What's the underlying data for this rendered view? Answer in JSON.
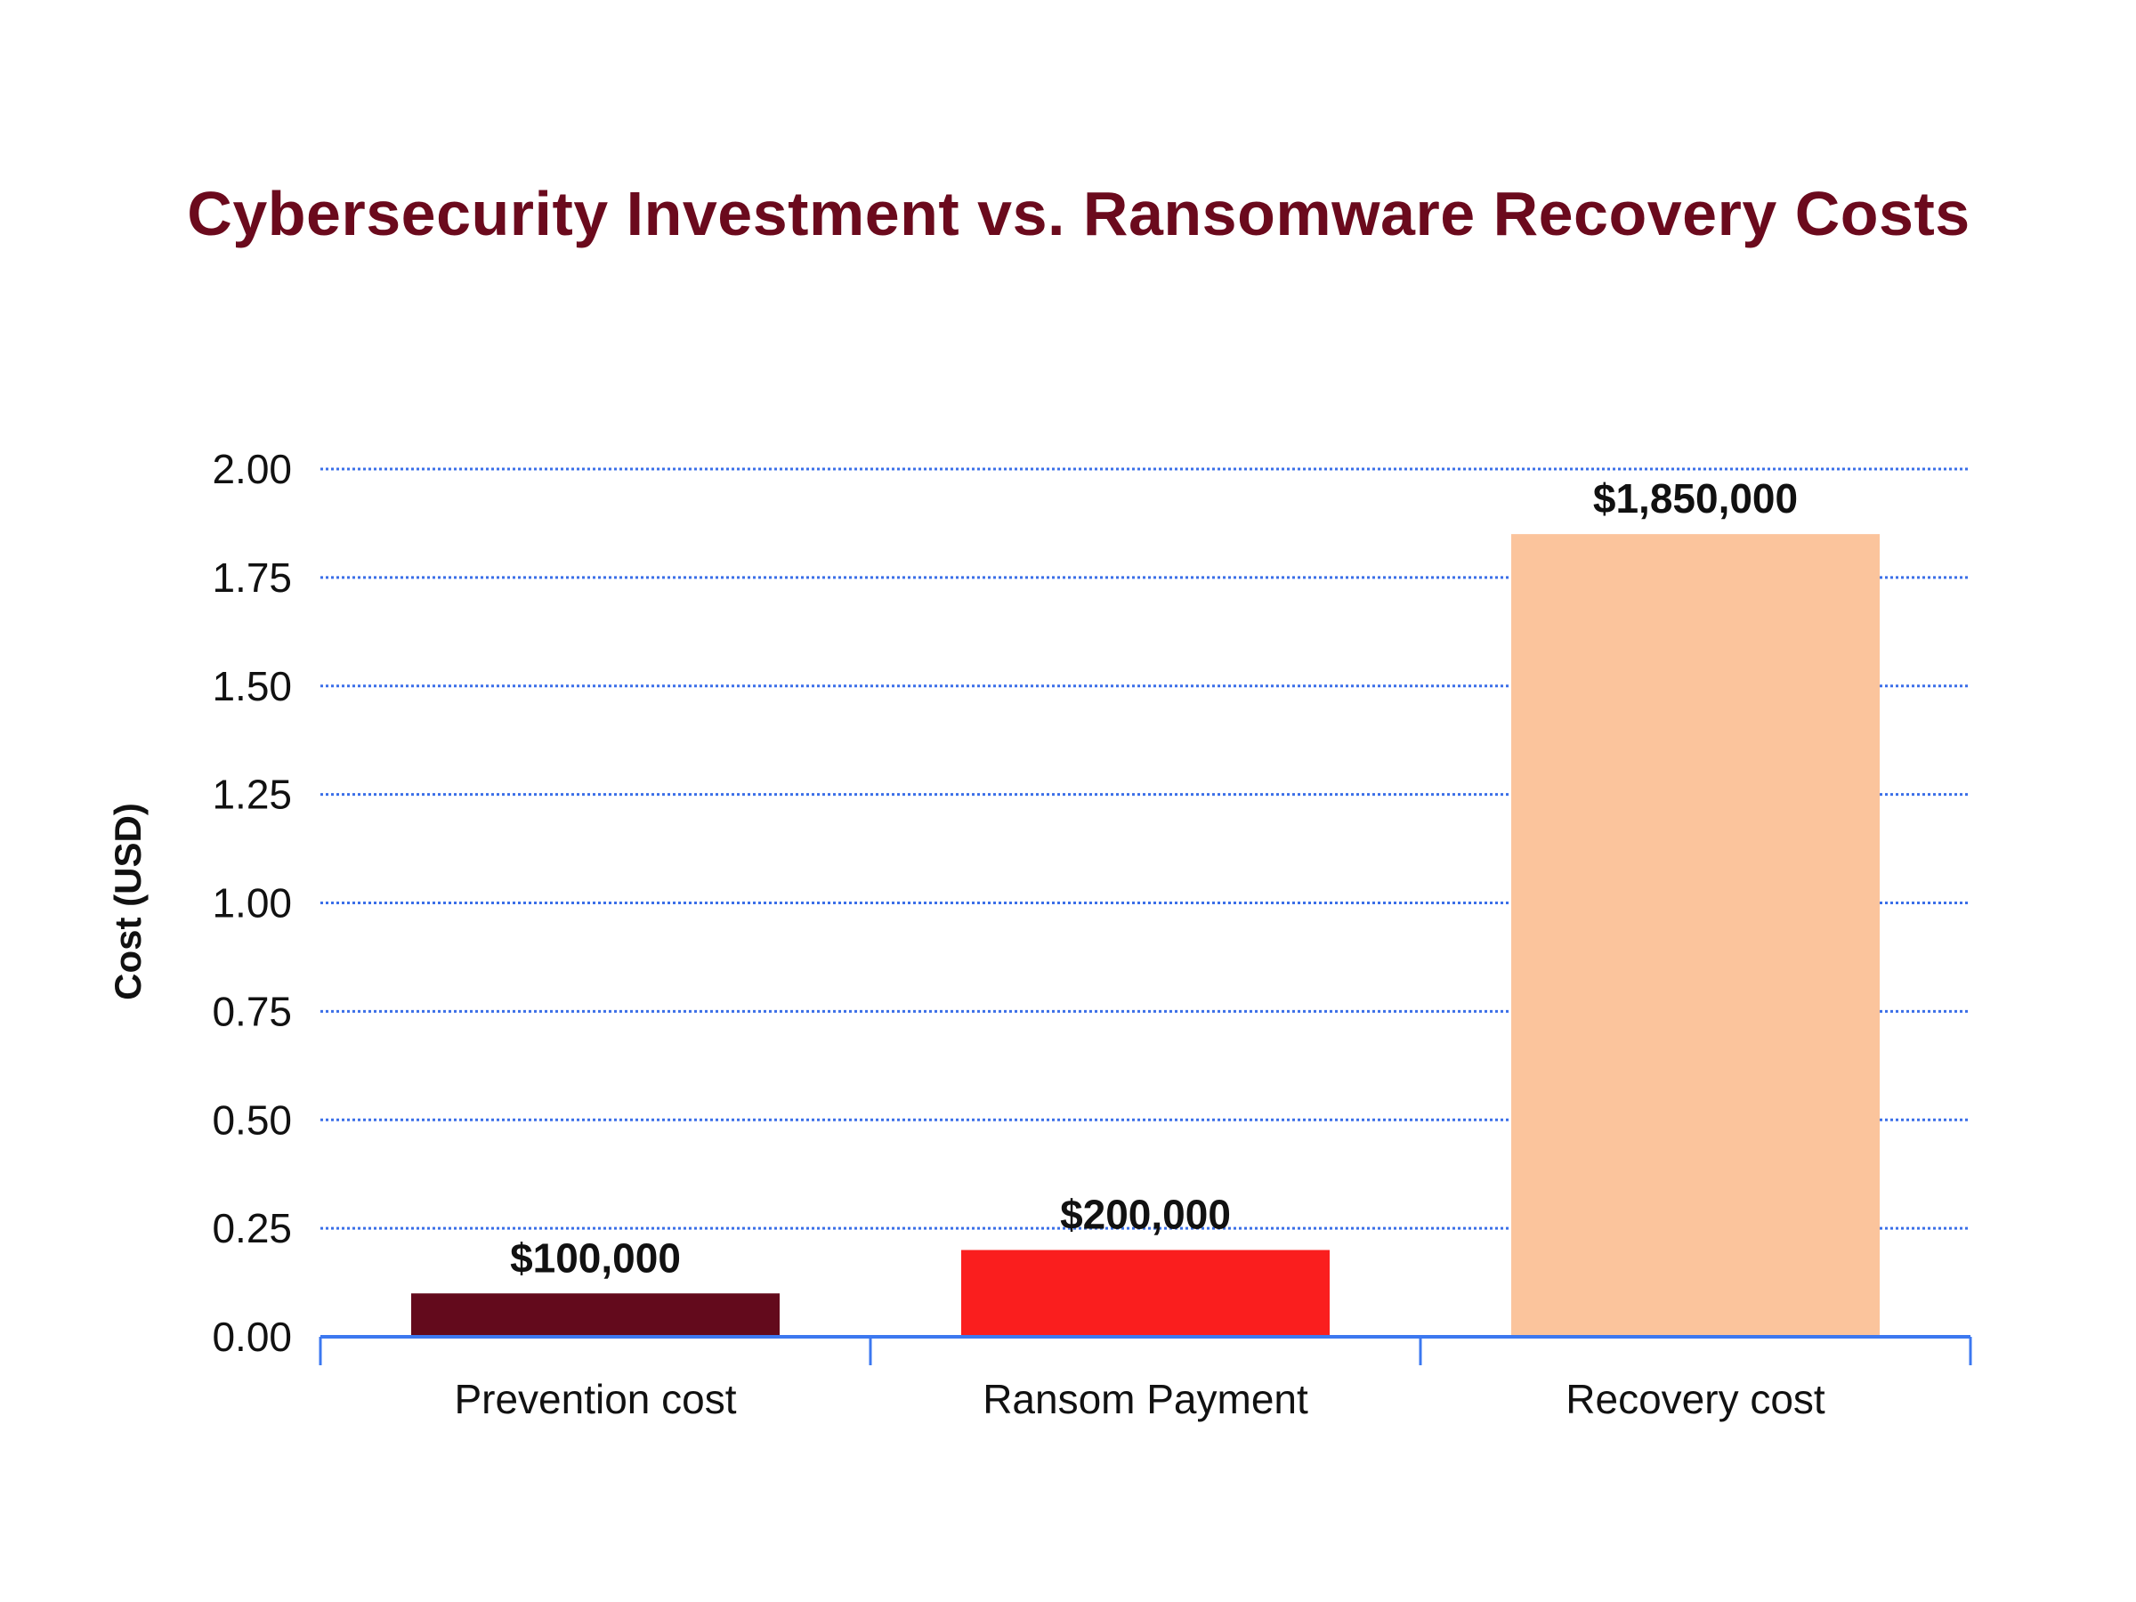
{
  "chart_data": {
    "type": "bar",
    "title": "Cybersecurity Investment vs. Ransomware Recovery Costs",
    "xlabel": "",
    "ylabel": "Cost (USD)",
    "ylim": [
      0,
      2.0
    ],
    "yticks": [
      "0.00",
      "0.25",
      "0.50",
      "0.75",
      "1.00",
      "1.25",
      "1.50",
      "1.75",
      "2.00"
    ],
    "categories": [
      "Prevention cost",
      "Ransom Payment",
      "Recovery cost"
    ],
    "values": [
      0.1,
      0.2,
      1.85
    ],
    "data_labels": [
      "$100,000",
      "$200,000",
      "$1,850,000"
    ],
    "colors": [
      "#630a1c",
      "#fa1e1e",
      "#fbc49c"
    ],
    "grid": true,
    "grid_color": "#3b6fe8",
    "axis_color": "#3c78f0",
    "title_color": "#6b0a1d"
  }
}
